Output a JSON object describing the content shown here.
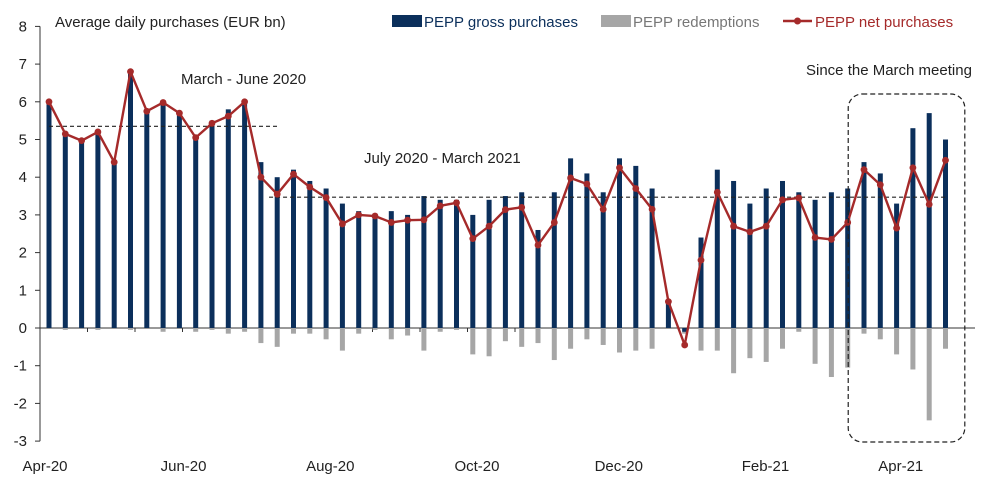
{
  "chart_data": {
    "type": "bar",
    "title": "Average daily purchases (EUR bn)",
    "ylim": [
      -3,
      8
    ],
    "yticks": [
      "-3",
      "-2",
      "-1",
      "0",
      "1",
      "2",
      "3",
      "4",
      "5",
      "6",
      "7",
      "8"
    ],
    "x_tick_labels": [
      {
        "label": "Apr-20",
        "index": 0
      },
      {
        "label": "Jun-20",
        "index": 8.5
      },
      {
        "label": "Aug-20",
        "index": 17.5
      },
      {
        "label": "Oct-20",
        "index": 26.5
      },
      {
        "label": "Dec-20",
        "index": 35.2
      },
      {
        "label": "Feb-21",
        "index": 44.2
      },
      {
        "label": "Apr-21",
        "index": 52.5
      }
    ],
    "colors": {
      "gross": "#0b2f5b",
      "redemptions": "#a6a6a6",
      "net": "#a52a2a"
    },
    "series": [
      {
        "name": "PEPP gross purchases",
        "kind": "bar",
        "values": [
          6.0,
          5.2,
          5.0,
          5.2,
          4.4,
          6.8,
          5.8,
          6.0,
          5.7,
          5.1,
          5.5,
          5.8,
          6.0,
          4.4,
          4.0,
          4.2,
          3.9,
          3.7,
          3.3,
          3.1,
          3.0,
          3.1,
          3.0,
          3.5,
          3.4,
          3.4,
          3.0,
          3.4,
          3.5,
          3.6,
          2.6,
          3.6,
          4.5,
          4.1,
          3.6,
          4.5,
          4.3,
          3.7,
          0.7,
          -0.1,
          2.4,
          4.2,
          3.9,
          3.3,
          3.7,
          3.9,
          3.6,
          3.4,
          3.6,
          3.7,
          4.4,
          4.1,
          3.3,
          5.3,
          5.7,
          5.0
        ]
      },
      {
        "name": "PEPP redemptions",
        "kind": "bar",
        "values": [
          0,
          -0.05,
          0,
          -0.05,
          0,
          -0.05,
          0,
          -0.1,
          0,
          -0.1,
          -0.05,
          -0.15,
          -0.1,
          -0.4,
          -0.5,
          -0.15,
          -0.15,
          -0.3,
          -0.6,
          -0.15,
          -0.05,
          -0.3,
          -0.2,
          -0.6,
          -0.1,
          -0.05,
          -0.7,
          -0.75,
          -0.35,
          -0.5,
          -0.4,
          -0.85,
          -0.55,
          -0.3,
          -0.45,
          -0.65,
          -0.6,
          -0.55,
          0,
          -0.15,
          -0.6,
          -0.6,
          -1.2,
          -0.8,
          -0.9,
          -0.55,
          -0.1,
          -0.95,
          -1.3,
          -1.05,
          -0.15,
          -0.3,
          -0.7,
          -1.1,
          -2.45,
          -0.55
        ]
      },
      {
        "name": "PEPP net purchases",
        "kind": "line",
        "values": [
          6.0,
          5.15,
          4.97,
          5.2,
          4.4,
          6.8,
          5.75,
          5.98,
          5.7,
          5.05,
          5.43,
          5.62,
          6.0,
          4.0,
          3.55,
          4.08,
          3.74,
          3.46,
          2.76,
          3.0,
          2.97,
          2.8,
          2.86,
          2.87,
          3.24,
          3.32,
          2.37,
          2.7,
          3.14,
          3.2,
          2.2,
          2.8,
          3.98,
          3.82,
          3.15,
          4.25,
          3.7,
          3.15,
          0.7,
          -0.45,
          1.8,
          3.6,
          2.7,
          2.55,
          2.7,
          3.4,
          3.45,
          2.4,
          2.35,
          2.8,
          4.2,
          3.8,
          2.65,
          4.25,
          3.28,
          4.45
        ]
      }
    ],
    "averages": [
      {
        "label": "March - June 2020",
        "value": 5.35,
        "from": 0,
        "to": 14
      },
      {
        "label": "July 2020 - March 2021",
        "value": 3.47,
        "from": 13.5,
        "to": 55
      }
    ],
    "highlight": {
      "label": "Since the March meeting",
      "from_index": 49.4,
      "to_index": 56
    }
  }
}
